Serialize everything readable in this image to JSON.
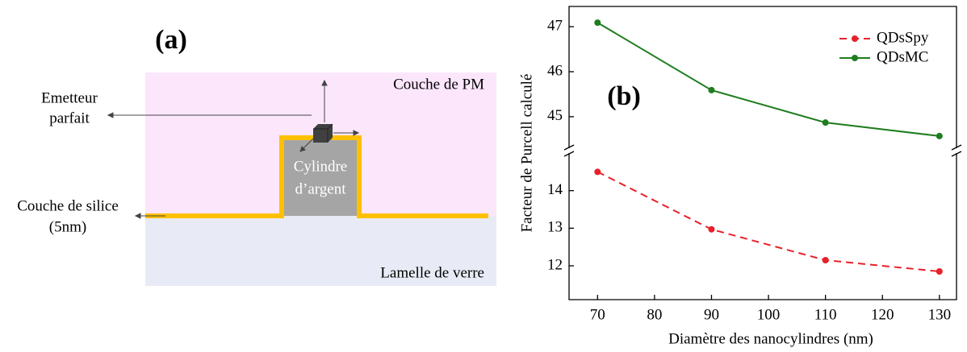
{
  "diagram": {
    "title": "(a)",
    "top_layer": "Couche de PM",
    "bottom_layer": "Lamelle de verre",
    "emitter": [
      "Emetteur",
      "parfait"
    ],
    "silica": [
      "Couche de silice",
      "(5nm)"
    ],
    "cylinder": [
      "Cylindre",
      "d’argent"
    ]
  },
  "chart_data": {
    "type": "line",
    "title": "(b)",
    "x_label": "Diamètre des nanocylindres (nm)",
    "y_label": "Facteur de Purcell calculé",
    "x": [
      70,
      90,
      110,
      130
    ],
    "xlim": [
      65,
      133
    ],
    "xticks": [
      70,
      80,
      90,
      100,
      110,
      120,
      130
    ],
    "ylim": [
      11.1,
      15.0
    ],
    "yticks": [
      12,
      13,
      14
    ],
    "y2lim": [
      44.3,
      47.45
    ],
    "y2ticks": [
      45,
      46,
      47
    ],
    "y_break": true,
    "legend": "upper-right",
    "series": [
      {
        "name": "QDsSpy",
        "color": "#e8202a",
        "dashed": true,
        "values": [
          14.5,
          12.97,
          12.15,
          11.85
        ]
      },
      {
        "name": "QDsMC",
        "color": "#1e7d1e",
        "dashed": false,
        "axis": "y2",
        "values": [
          47.09,
          45.59,
          44.87,
          44.57
        ]
      }
    ]
  }
}
